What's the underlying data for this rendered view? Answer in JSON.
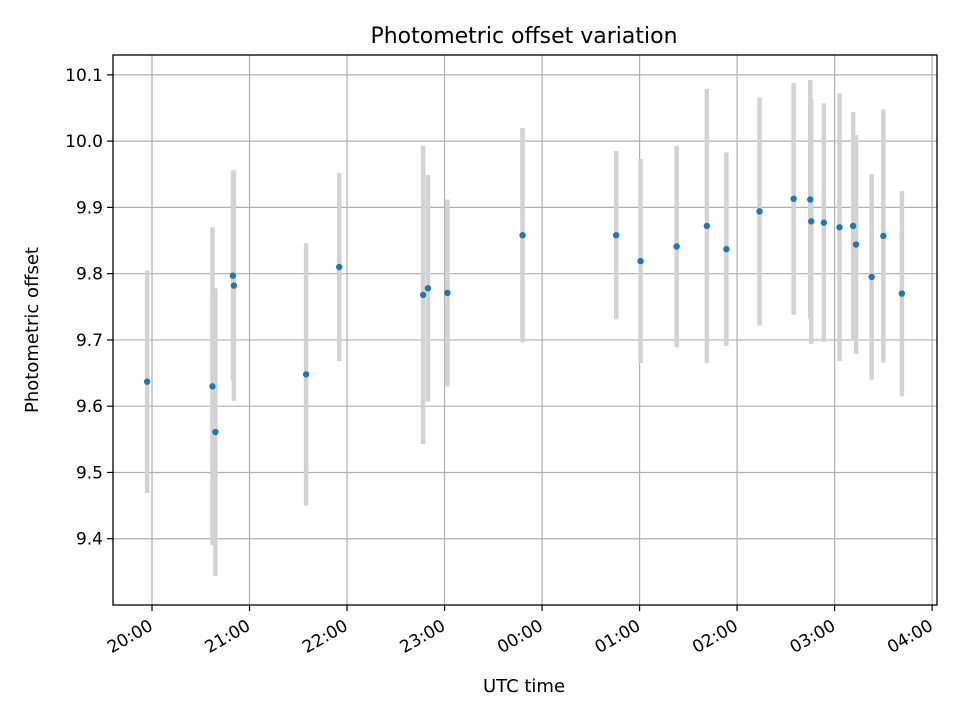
{
  "chart_data": {
    "type": "scatter",
    "title": "Photometric offset variation",
    "xlabel": "UTC time",
    "ylabel": "Photometric offset",
    "x_unit": "hours",
    "xlim": [
      19.6,
      28.05
    ],
    "ylim": [
      9.3,
      10.13
    ],
    "x_ticks": [
      {
        "x": 20,
        "label": "20:00"
      },
      {
        "x": 21,
        "label": "21:00"
      },
      {
        "x": 22,
        "label": "22:00"
      },
      {
        "x": 23,
        "label": "23:00"
      },
      {
        "x": 24,
        "label": "00:00"
      },
      {
        "x": 25,
        "label": "01:00"
      },
      {
        "x": 26,
        "label": "02:00"
      },
      {
        "x": 27,
        "label": "03:00"
      },
      {
        "x": 28,
        "label": "04:00"
      }
    ],
    "y_ticks": [
      {
        "y": 9.4,
        "label": "9.4"
      },
      {
        "y": 9.5,
        "label": "9.5"
      },
      {
        "y": 9.6,
        "label": "9.6"
      },
      {
        "y": 9.7,
        "label": "9.7"
      },
      {
        "y": 9.8,
        "label": "9.8"
      },
      {
        "y": 9.9,
        "label": "9.9"
      },
      {
        "y": 10.0,
        "label": "10.0"
      },
      {
        "y": 10.1,
        "label": "10.1"
      }
    ],
    "grid": true,
    "marker_color": "#1f77b4",
    "errorbar_color": "#d3d3d3",
    "points": [
      {
        "x": 19.95,
        "y": 9.637,
        "yerr": 0.168
      },
      {
        "x": 20.62,
        "y": 9.63,
        "yerr": 0.24
      },
      {
        "x": 20.65,
        "y": 9.561,
        "yerr": 0.217
      },
      {
        "x": 20.83,
        "y": 9.797,
        "yerr": 0.158
      },
      {
        "x": 20.84,
        "y": 9.782,
        "yerr": 0.174
      },
      {
        "x": 21.58,
        "y": 9.648,
        "yerr": 0.198
      },
      {
        "x": 21.92,
        "y": 9.81,
        "yerr": 0.142
      },
      {
        "x": 22.78,
        "y": 9.768,
        "yerr": 0.225
      },
      {
        "x": 22.83,
        "y": 9.778,
        "yerr": 0.171
      },
      {
        "x": 23.03,
        "y": 9.771,
        "yerr": 0.141
      },
      {
        "x": 23.8,
        "y": 9.858,
        "yerr": 0.162
      },
      {
        "x": 24.76,
        "y": 9.858,
        "yerr": 0.127
      },
      {
        "x": 25.01,
        "y": 9.819,
        "yerr": 0.154
      },
      {
        "x": 25.38,
        "y": 9.841,
        "yerr": 0.152
      },
      {
        "x": 25.69,
        "y": 9.872,
        "yerr": 0.207
      },
      {
        "x": 25.89,
        "y": 9.837,
        "yerr": 0.146
      },
      {
        "x": 26.23,
        "y": 9.894,
        "yerr": 0.172
      },
      {
        "x": 26.58,
        "y": 9.913,
        "yerr": 0.175
      },
      {
        "x": 26.75,
        "y": 9.912,
        "yerr": 0.18
      },
      {
        "x": 26.76,
        "y": 9.879,
        "yerr": 0.185
      },
      {
        "x": 26.89,
        "y": 9.877,
        "yerr": 0.18
      },
      {
        "x": 27.05,
        "y": 9.87,
        "yerr": 0.202
      },
      {
        "x": 27.19,
        "y": 9.872,
        "yerr": 0.172
      },
      {
        "x": 27.22,
        "y": 9.844,
        "yerr": 0.165
      },
      {
        "x": 27.38,
        "y": 9.795,
        "yerr": 0.155
      },
      {
        "x": 27.5,
        "y": 9.857,
        "yerr": 0.191
      },
      {
        "x": 27.69,
        "y": 9.77,
        "yerr": 0.155
      }
    ]
  }
}
